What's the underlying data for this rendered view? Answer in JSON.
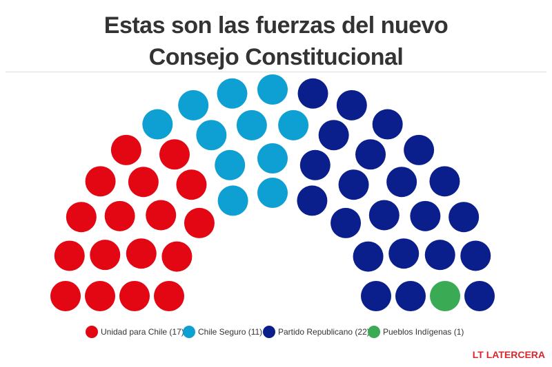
{
  "chart_data": {
    "type": "parliament",
    "title": "Estas son las fuerzas del nuevo Consejo Constitucional",
    "series": [
      {
        "name": "Unidad para Chile (17)",
        "color": "#e30613",
        "value": 17
      },
      {
        "name": "Chile Seguro (11)",
        "color": "#0ea0d2",
        "value": 11
      },
      {
        "name": "Partido Republicano (22)",
        "color": "#0b1f8c",
        "value": 22
      },
      {
        "name": "Pueblos Indígenas (1)",
        "color": "#3aaa55",
        "value": 1
      }
    ]
  },
  "brand": "LT LATERCERA"
}
